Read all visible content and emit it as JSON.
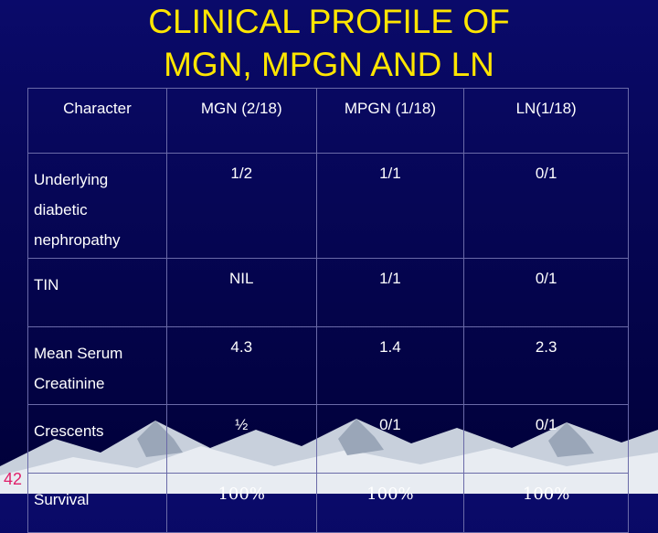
{
  "title": {
    "line1": "CLINICAL  PROFILE OF",
    "line2": "MGN, MPGN AND LN"
  },
  "table": {
    "headers": [
      "Character",
      "MGN (2/18)",
      "MPGN (1/18)",
      "LN(1/18)"
    ],
    "rows": [
      {
        "label_lines": [
          "Underlying",
          "diabetic",
          "nephropathy"
        ],
        "values": [
          "1/2",
          "1/1",
          "0/1"
        ]
      },
      {
        "label_lines": [
          "TIN"
        ],
        "values": [
          "NIL",
          "1/1",
          "0/1"
        ]
      },
      {
        "label_lines": [
          "Mean Serum",
          "Creatinine"
        ],
        "values": [
          "4.3",
          "1.4",
          "2.3"
        ]
      },
      {
        "label_lines": [
          "Crescents"
        ],
        "values": [
          "½",
          "0/1",
          "0/1"
        ]
      },
      {
        "label_lines": [
          "Survival"
        ],
        "values": [
          "100%",
          "100%",
          "100%"
        ]
      }
    ]
  },
  "slide_number": "42",
  "colors": {
    "title": "#ffe600",
    "background": "#000050",
    "text": "#ffffff",
    "slide_number": "#e0206a"
  }
}
